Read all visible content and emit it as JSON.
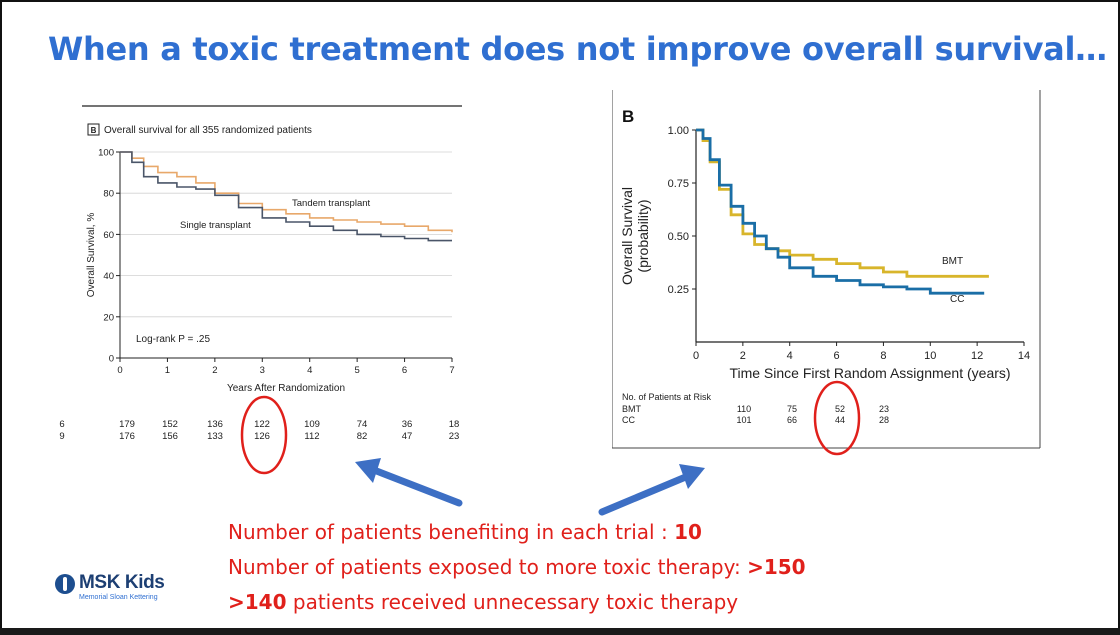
{
  "slide": {
    "title": "When a toxic treatment does not improve overall survival…",
    "line1": {
      "text": "Number of patients benefiting in each trial :  ",
      "value": "10"
    },
    "line2": {
      "text": "Number of patients exposed to more toxic therapy:  ",
      "value": ">150"
    },
    "line3": {
      "value": ">140",
      "text": " patients received unnecessary toxic therapy"
    },
    "logo": {
      "name": "MSK Kids",
      "subtitle": "Memorial Sloan Kettering"
    }
  },
  "colors": {
    "title": "#2f6fd1",
    "emphasis_text": "#e0201b",
    "arrow": "#3d6fc4",
    "circle": "#e0201b",
    "left_tandem": "#e8a86a",
    "left_single": "#4a5568",
    "right_bmt": "#d8b52b",
    "right_cc": "#1a6ea6"
  },
  "chart_data": [
    {
      "type": "line",
      "panel": "B",
      "title": "Overall survival for all 355 randomized patients",
      "xlabel": "Years After Randomization",
      "ylabel": "Overall Survival, %",
      "xlim": [
        0,
        7
      ],
      "ylim": [
        0,
        100
      ],
      "x_ticks": [
        "0",
        "1",
        "2",
        "3",
        "4",
        "5",
        "6",
        "7"
      ],
      "y_ticks": [
        "0",
        "20",
        "40",
        "60",
        "80",
        "100"
      ],
      "grid": true,
      "annotation": "Log-rank P = .25",
      "series": [
        {
          "name": "Tandem transplant",
          "x": [
            0,
            0.25,
            0.5,
            0.8,
            1.2,
            1.6,
            2.0,
            2.5,
            3.0,
            3.5,
            4.0,
            4.5,
            5.0,
            5.5,
            6.0,
            6.5,
            7.0
          ],
          "y": [
            100,
            97,
            93,
            90,
            88,
            85,
            80,
            75,
            72,
            70,
            68,
            67,
            66,
            65,
            64,
            62,
            61
          ]
        },
        {
          "name": "Single transplant",
          "x": [
            0,
            0.25,
            0.5,
            0.8,
            1.2,
            1.6,
            2.0,
            2.5,
            3.0,
            3.5,
            4.0,
            4.5,
            5.0,
            5.5,
            6.0,
            6.5,
            7.0
          ],
          "y": [
            100,
            95,
            88,
            85,
            83,
            82,
            79,
            73,
            68,
            66,
            64,
            62,
            60,
            59,
            58,
            57,
            57
          ]
        }
      ],
      "at_risk": {
        "row1": [
          "6",
          "179",
          "152",
          "136",
          "122",
          "109",
          "74",
          "36",
          "18"
        ],
        "row2": [
          "9",
          "176",
          "156",
          "133",
          "126",
          "112",
          "82",
          "47",
          "23"
        ]
      }
    },
    {
      "type": "line",
      "panel": "B",
      "xlabel": "Time Since First Random Assignment (years)",
      "ylabel": "Overall Survival (probability)",
      "ylabel_lines": [
        "Overall Survival",
        "(probability)"
      ],
      "xlim": [
        0,
        14
      ],
      "ylim": [
        0,
        1
      ],
      "x_ticks": [
        "0",
        "2",
        "4",
        "6",
        "8",
        "10",
        "12",
        "14"
      ],
      "y_ticks": [
        "0.25",
        "0.50",
        "0.75",
        "1.00"
      ],
      "series": [
        {
          "name": "BMT",
          "x": [
            0,
            0.3,
            0.6,
            1.0,
            1.5,
            2.0,
            2.5,
            3.0,
            3.5,
            4.0,
            5.0,
            6.0,
            7.0,
            8.0,
            9.0,
            10.0,
            11.0,
            12.5
          ],
          "y": [
            1.0,
            0.95,
            0.85,
            0.72,
            0.6,
            0.51,
            0.46,
            0.44,
            0.43,
            0.41,
            0.39,
            0.37,
            0.35,
            0.33,
            0.31,
            0.31,
            0.31,
            0.31
          ]
        },
        {
          "name": "CC",
          "x": [
            0,
            0.3,
            0.6,
            1.0,
            1.5,
            2.0,
            2.5,
            3.0,
            3.5,
            4.0,
            5.0,
            6.0,
            7.0,
            8.0,
            9.0,
            10.0,
            11.0,
            12.3
          ],
          "y": [
            1.0,
            0.96,
            0.86,
            0.74,
            0.64,
            0.56,
            0.5,
            0.44,
            0.4,
            0.35,
            0.31,
            0.29,
            0.27,
            0.26,
            0.25,
            0.23,
            0.23,
            0.23
          ]
        }
      ],
      "at_risk": {
        "header": "No. of Patients at Risk",
        "rows": [
          {
            "label": "BMT",
            "values": [
              "110",
              "75",
              "52",
              "23"
            ]
          },
          {
            "label": "CC",
            "values": [
              "101",
              "66",
              "44",
              "28"
            ]
          }
        ]
      }
    }
  ]
}
